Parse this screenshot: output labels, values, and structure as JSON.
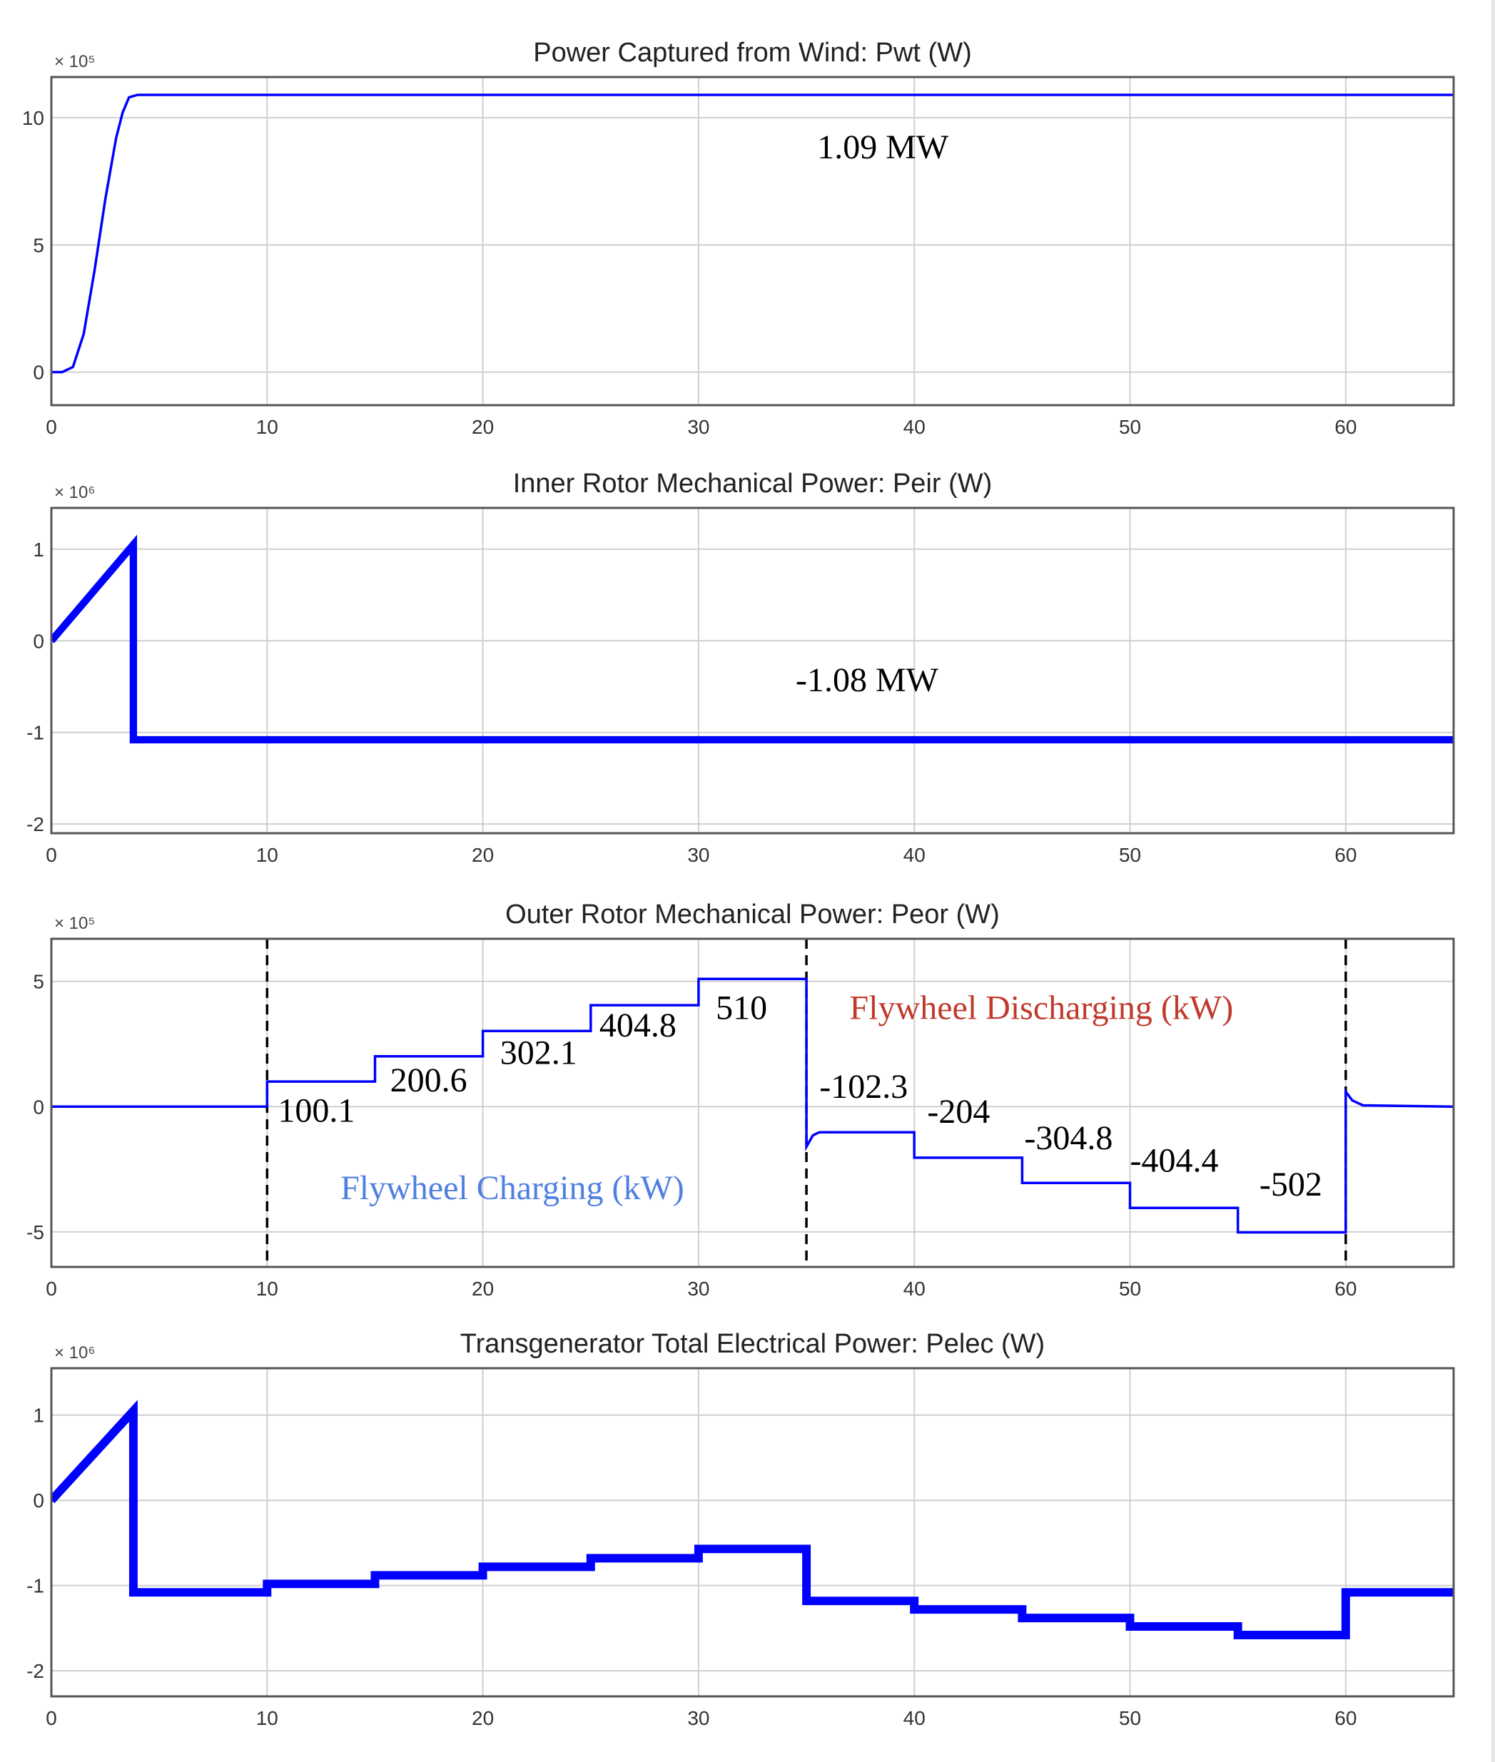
{
  "chart_data": [
    {
      "type": "line",
      "title": "Power Captured from Wind: Pwt (W)",
      "y_exponent": "× 10⁵",
      "xlim": [
        0,
        65
      ],
      "ylim": [
        -1.3,
        11.6
      ],
      "xticks": [
        0,
        10,
        20,
        30,
        40,
        50,
        60
      ],
      "yticks": [
        0,
        5,
        10
      ],
      "grid": true,
      "series": [
        {
          "color": "#0000ff",
          "x": [
            0,
            0.5,
            1,
            1.5,
            2,
            2.5,
            3,
            3.3,
            3.6,
            4,
            65
          ],
          "y": [
            0,
            0,
            0.2,
            1.5,
            4.0,
            6.8,
            9.2,
            10.2,
            10.8,
            10.9,
            10.9
          ]
        }
      ],
      "annotations": [
        {
          "text": "1.09 MW",
          "x": 35.5,
          "y": 8.4,
          "color": "#000000"
        }
      ]
    },
    {
      "type": "line",
      "title": "Inner Rotor Mechanical Power: Peir (W)",
      "y_exponent": "× 10⁶",
      "xlim": [
        0,
        65
      ],
      "ylim": [
        -2.1,
        1.45
      ],
      "xticks": [
        0,
        10,
        20,
        30,
        40,
        50,
        60
      ],
      "yticks": [
        -2,
        -1,
        0,
        1
      ],
      "grid": true,
      "series": [
        {
          "color": "#0000ff",
          "x": [
            0,
            3.8,
            3.8,
            65
          ],
          "y": [
            0,
            1.05,
            -1.08,
            -1.08
          ],
          "band": 0.08
        }
      ],
      "annotations": [
        {
          "text": "-1.08 MW",
          "x": 34.5,
          "y": -0.55,
          "color": "#000000"
        }
      ]
    },
    {
      "type": "line",
      "title": "Outer Rotor Mechanical Power: Peor (W)",
      "y_exponent": "× 10⁵",
      "xlim": [
        0,
        65
      ],
      "ylim": [
        -6.4,
        6.7
      ],
      "xticks": [
        0,
        10,
        20,
        30,
        40,
        50,
        60
      ],
      "yticks": [
        -5,
        0,
        5
      ],
      "grid": true,
      "vlines": [
        10,
        35,
        60
      ],
      "series": [
        {
          "color": "#0000ff",
          "x": [
            0,
            10,
            10,
            15,
            15,
            20,
            20,
            25,
            25,
            30,
            30,
            35,
            35,
            35.3,
            35.6,
            40,
            40,
            45,
            45,
            50,
            50,
            55,
            55,
            60,
            60,
            60.3,
            60.8,
            65
          ],
          "y": [
            0,
            0,
            1.001,
            1.001,
            2.006,
            2.006,
            3.021,
            3.021,
            4.048,
            4.048,
            5.1,
            5.1,
            -1.6,
            -1.15,
            -1.023,
            -1.023,
            -2.04,
            -2.04,
            -3.048,
            -3.048,
            -4.044,
            -4.044,
            -5.02,
            -5.02,
            0.6,
            0.25,
            0.05,
            0
          ]
        }
      ],
      "annotations": [
        {
          "text": "100.1",
          "x": 10.5,
          "y": -0.6,
          "color": "#000000"
        },
        {
          "text": "200.6",
          "x": 15.7,
          "y": 0.6,
          "color": "#000000"
        },
        {
          "text": "302.1",
          "x": 20.8,
          "y": 1.7,
          "color": "#000000"
        },
        {
          "text": "404.8",
          "x": 25.4,
          "y": 2.8,
          "color": "#000000"
        },
        {
          "text": "510",
          "x": 30.8,
          "y": 3.5,
          "color": "#000000"
        },
        {
          "text": "-102.3",
          "x": 35.6,
          "y": 0.35,
          "color": "#000000"
        },
        {
          "text": "-204",
          "x": 40.6,
          "y": -0.65,
          "color": "#000000"
        },
        {
          "text": "-304.8",
          "x": 45.1,
          "y": -1.7,
          "color": "#000000"
        },
        {
          "text": "-404.4",
          "x": 50.0,
          "y": -2.6,
          "color": "#000000"
        },
        {
          "text": "-502",
          "x": 56.0,
          "y": -3.55,
          "color": "#000000"
        },
        {
          "text": "Flywheel Charging (kW)",
          "x": 13.4,
          "y": -3.7,
          "color": "#4f7fe0"
        },
        {
          "text": "Flywheel Discharging (kW)",
          "x": 37.0,
          "y": 3.5,
          "color": "#c0392b"
        }
      ]
    },
    {
      "type": "line",
      "title": "Transgenerator Total Electrical Power: Pelec (W)",
      "y_exponent": "× 10⁶",
      "xlim": [
        0,
        65
      ],
      "ylim": [
        -2.3,
        1.55
      ],
      "xticks": [
        0,
        10,
        20,
        30,
        40,
        50,
        60
      ],
      "yticks": [
        -2,
        -1,
        0,
        1
      ],
      "grid": true,
      "series": [
        {
          "color": "#0000ff",
          "x": [
            0,
            3.8,
            3.8,
            10,
            10,
            15,
            15,
            20,
            20,
            25,
            25,
            30,
            30,
            35,
            35,
            40,
            40,
            45,
            45,
            50,
            50,
            55,
            55,
            60,
            60,
            65
          ],
          "y": [
            0,
            1.05,
            -1.08,
            -1.08,
            -0.98,
            -0.98,
            -0.88,
            -0.88,
            -0.78,
            -0.78,
            -0.68,
            -0.68,
            -0.57,
            -0.57,
            -1.18,
            -1.18,
            -1.28,
            -1.28,
            -1.38,
            -1.38,
            -1.48,
            -1.48,
            -1.58,
            -1.58,
            -1.08,
            -1.08
          ],
          "band": 0.1
        }
      ],
      "annotations": []
    }
  ]
}
